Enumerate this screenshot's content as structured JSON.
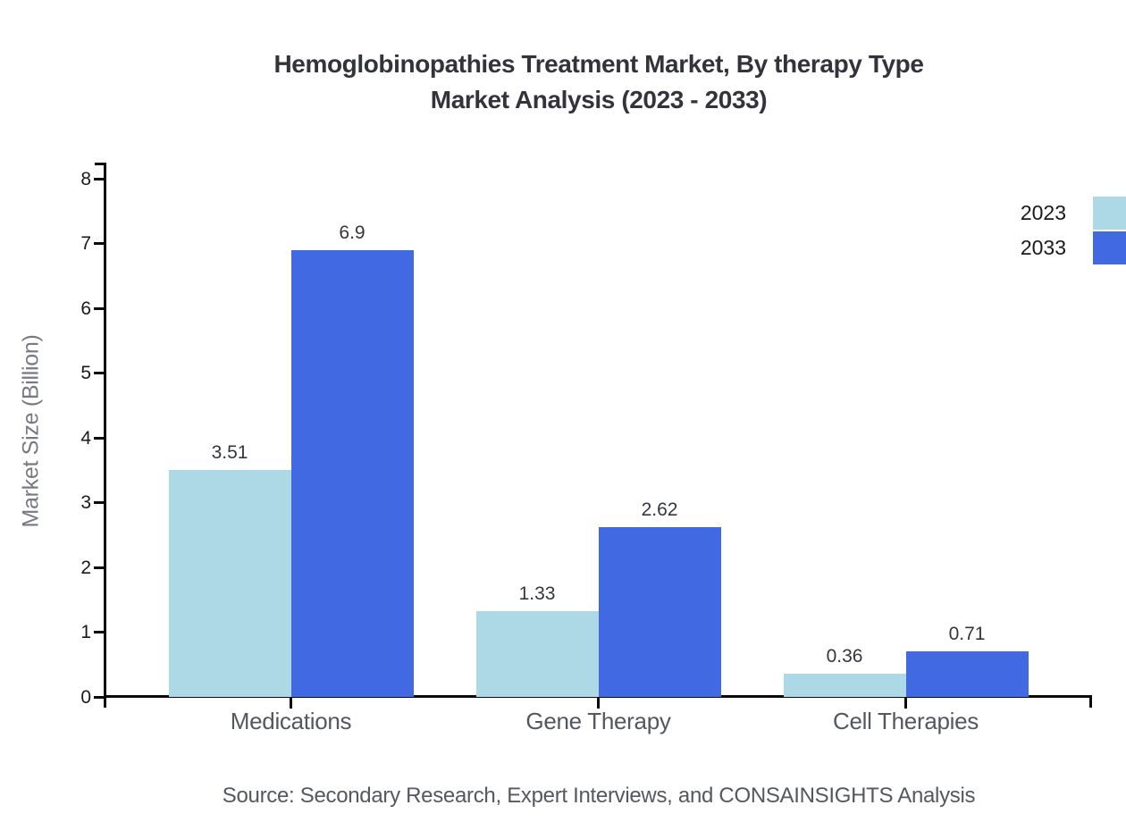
{
  "chart_data": {
    "type": "bar",
    "title": "Hemoglobinopathies Treatment Market, By therapy Type Market Analysis (2023 - 2033)",
    "title_lines": [
      "Hemoglobinopathies Treatment Market, By therapy Type",
      "Market Analysis (2023 - 2033)"
    ],
    "xlabel": "",
    "ylabel": "Market Size (Billion)",
    "categories": [
      "Medications",
      "Gene Therapy",
      "Cell Therapies"
    ],
    "series": [
      {
        "name": "2023",
        "color": "#ADD8E6",
        "values": [
          3.51,
          1.33,
          0.36
        ],
        "labels": [
          "3.51",
          "1.33",
          "0.36"
        ]
      },
      {
        "name": "2033",
        "color": "#4169E1",
        "values": [
          6.9,
          2.62,
          0.71
        ],
        "labels": [
          "6.9",
          "2.62",
          "0.71"
        ]
      }
    ],
    "ylim": [
      0,
      8
    ],
    "yticks": [
      0,
      1,
      2,
      3,
      4,
      5,
      6,
      7,
      8
    ],
    "grid": false,
    "legend_position": "top-right",
    "axis_color": "#0a0a0a",
    "source": "Source: Secondary Research, Expert Interviews, and CONSAINSIGHTS Analysis"
  }
}
